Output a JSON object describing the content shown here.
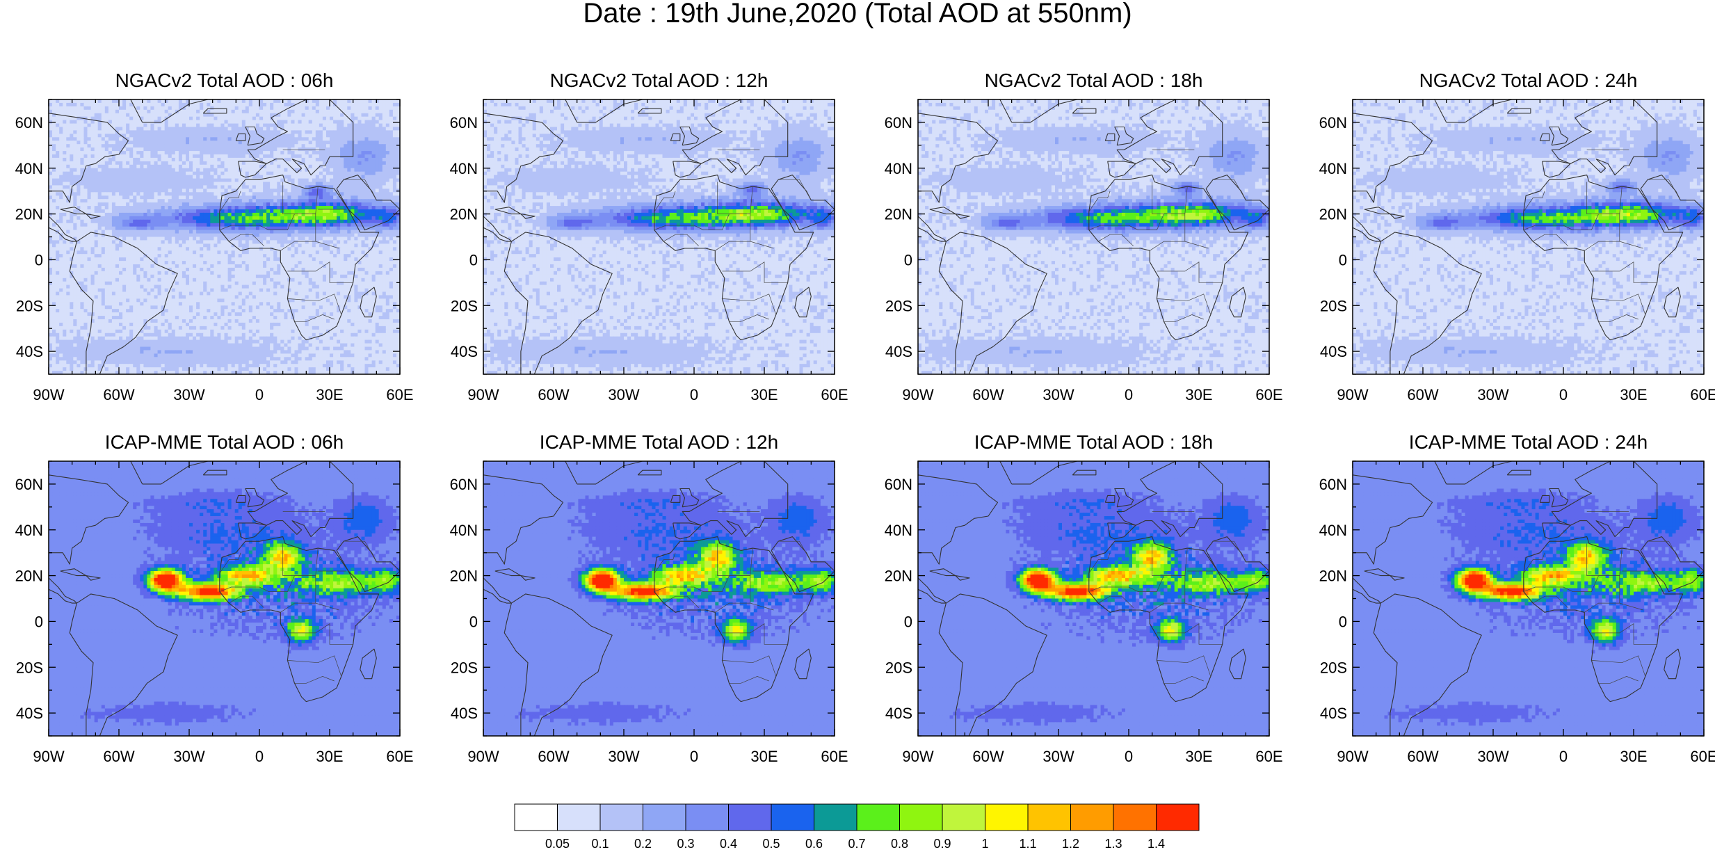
{
  "figure": {
    "title": "Date : 19th June,2020 (Total AOD at 550nm)"
  },
  "axes": {
    "lon_labels": [
      "90W",
      "60W",
      "30W",
      "0",
      "30E",
      "60E"
    ],
    "lat_labels": [
      "60N",
      "40N",
      "20N",
      "0",
      "20S",
      "40S"
    ],
    "lon_range": [
      -90,
      60
    ],
    "lat_range": [
      -50,
      70
    ]
  },
  "panels": [
    {
      "title": "NGACv2 Total AOD : 06h",
      "model": "NGACv2",
      "hour": 6
    },
    {
      "title": "NGACv2 Total AOD : 12h",
      "model": "NGACv2",
      "hour": 12
    },
    {
      "title": "NGACv2 Total AOD : 18h",
      "model": "NGACv2",
      "hour": 18
    },
    {
      "title": "NGACv2 Total AOD : 24h",
      "model": "NGACv2",
      "hour": 24
    },
    {
      "title": "ICAP-MME Total AOD : 06h",
      "model": "ICAP-MME",
      "hour": 6
    },
    {
      "title": "ICAP-MME Total AOD : 12h",
      "model": "ICAP-MME",
      "hour": 12
    },
    {
      "title": "ICAP-MME Total AOD : 18h",
      "model": "ICAP-MME",
      "hour": 18
    },
    {
      "title": "ICAP-MME Total AOD : 24h",
      "model": "ICAP-MME",
      "hour": 24
    }
  ],
  "colorbar": {
    "colors": [
      "#ffffff",
      "#d7e0fb",
      "#b4c2f7",
      "#8fa6f5",
      "#7a8ef3",
      "#6068ec",
      "#1a63ee",
      "#0c9a96",
      "#5bf01b",
      "#8ff510",
      "#c0f53c",
      "#fff500",
      "#ffc300",
      "#ff9c00",
      "#ff7200",
      "#ff2a00"
    ],
    "labels": [
      "0.05",
      "0.1",
      "0.2",
      "0.3",
      "0.4",
      "0.5",
      "0.6",
      "0.7",
      "0.8",
      "0.9",
      "1",
      "1.1",
      "1.2",
      "1.3",
      "1.4"
    ]
  }
}
